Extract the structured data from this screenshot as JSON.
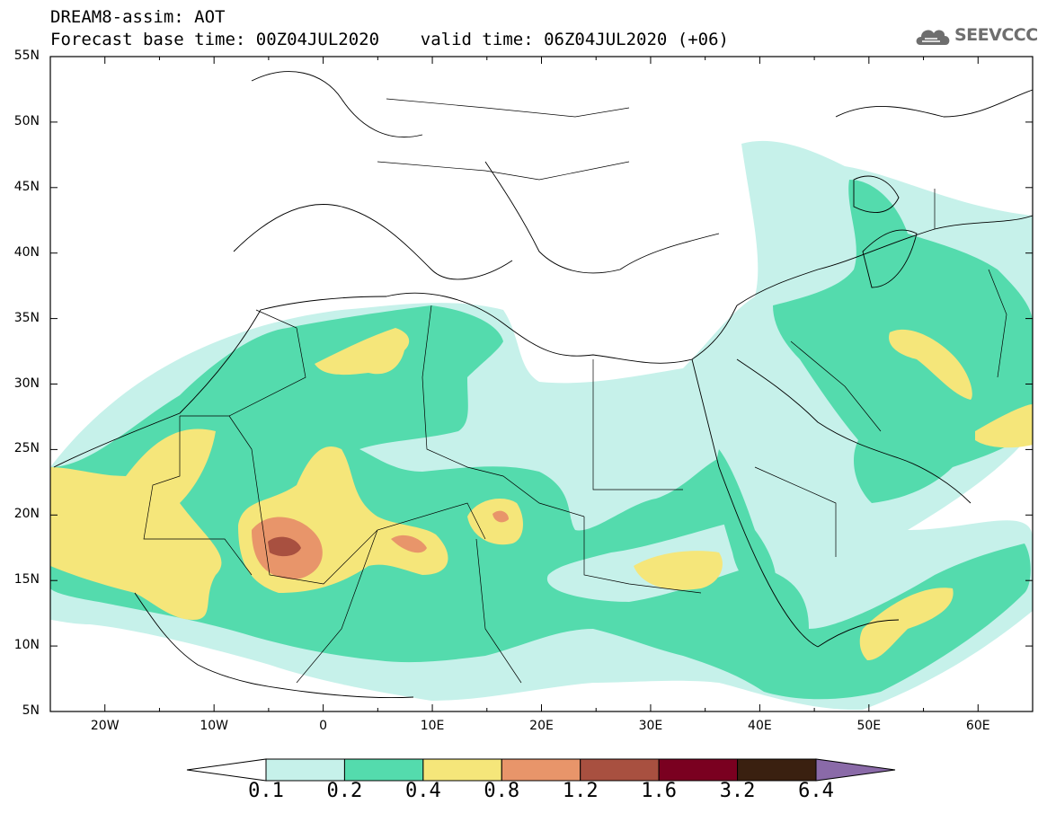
{
  "header": {
    "line1": "DREAM8-assim: AOT",
    "line2": "Forecast base time: 00Z04JUL2020    valid time: 06Z04JUL2020 (+06)",
    "logo_text": "SEEVCCC"
  },
  "map": {
    "lon_range": [
      -25,
      65
    ],
    "lat_range": [
      5,
      55
    ],
    "lat_labels": [
      "55N",
      "50N",
      "45N",
      "40N",
      "35N",
      "30N",
      "25N",
      "20N",
      "15N",
      "10N",
      "5N"
    ],
    "lon_labels": [
      "20W",
      "10W",
      "0",
      "10E",
      "20E",
      "30E",
      "40E",
      "50E",
      "60E"
    ]
  },
  "colorbar": {
    "colors": [
      "#c6f1ea",
      "#54dbad",
      "#f5e67a",
      "#e8956a",
      "#a85040",
      "#7a0020",
      "#3a2010",
      "#8a6aa8"
    ],
    "labels": [
      "0.1",
      "0.2",
      "0.4",
      "0.8",
      "1.2",
      "1.6",
      "3.2",
      "6.4"
    ]
  }
}
